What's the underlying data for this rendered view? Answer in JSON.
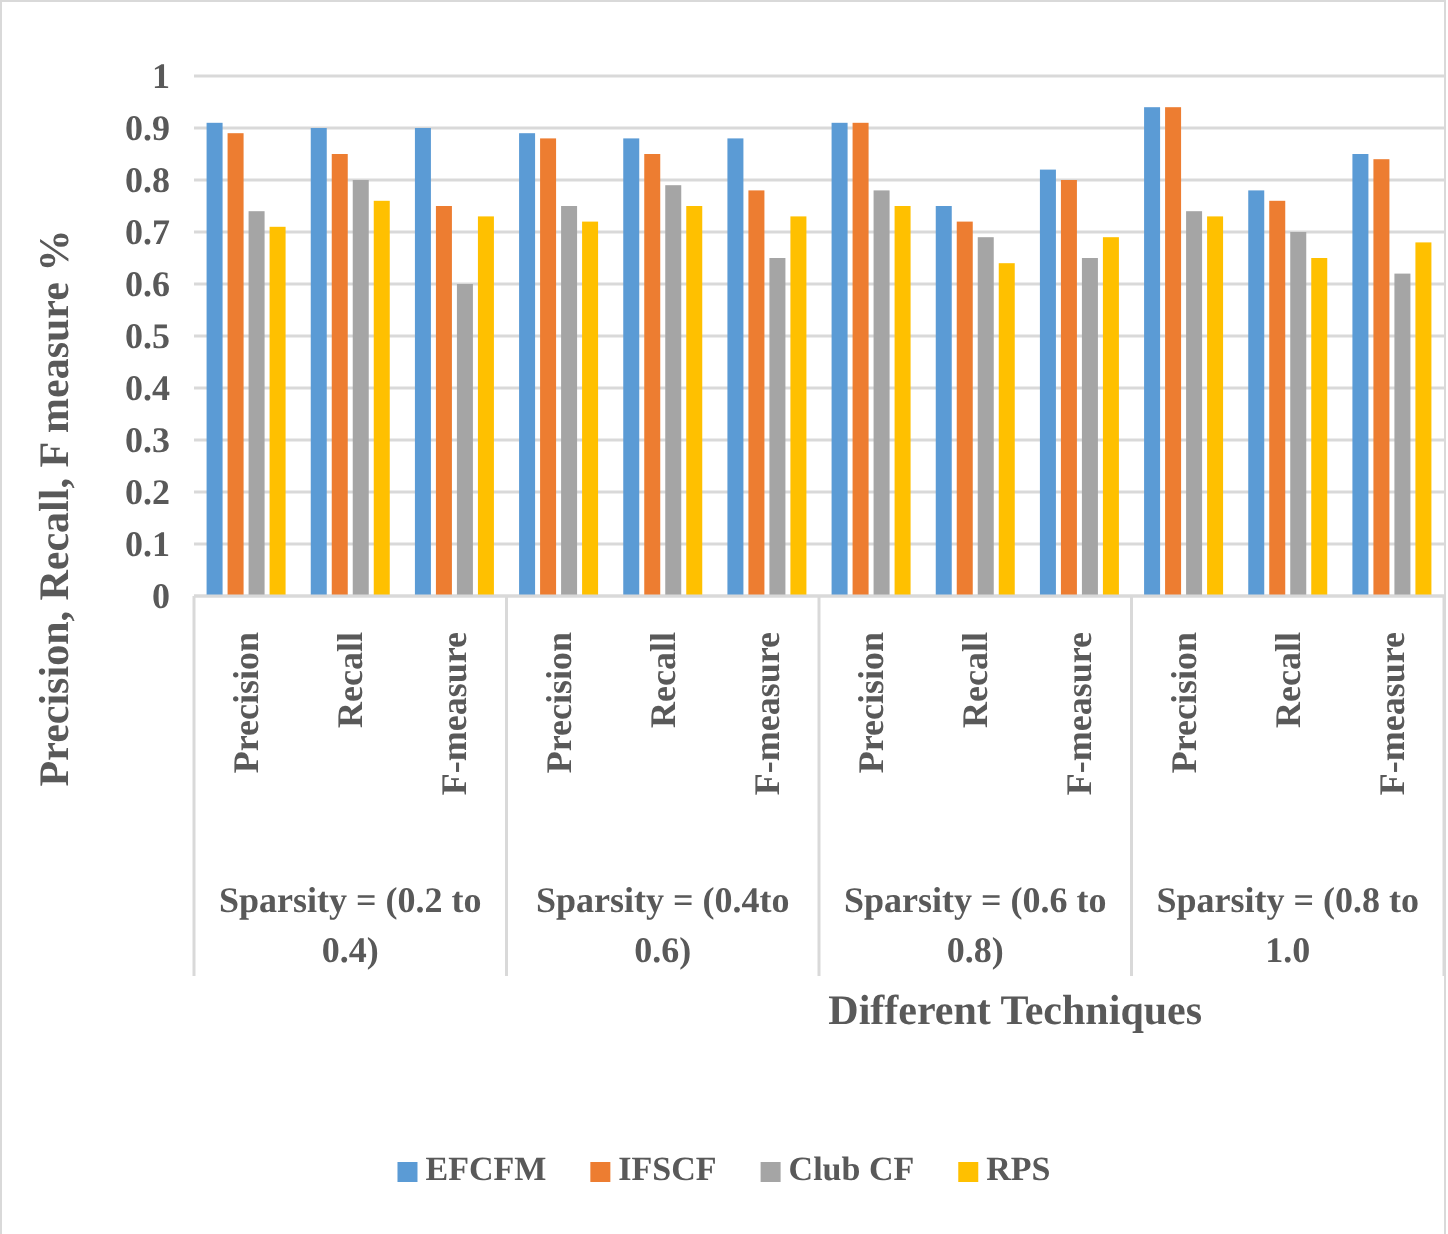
{
  "chart_data": {
    "type": "bar",
    "xlabel": "Different Techniques",
    "ylabel": "Precision, Recall, F measure %",
    "categories": [
      "Precision",
      "Recall",
      "F-measure",
      "Precision",
      "Recall",
      "F-measure",
      "Precision",
      "Recall",
      "F-measure",
      "Precision",
      "Recall",
      "F-measure"
    ],
    "annotations": [
      "Sparsity = (0.2 to 0.4)",
      "Sparsity = (0.4to 0.6)",
      "Sparsity = (0.6 to 0.8)",
      "Sparsity = (0.8 to 1.0"
    ],
    "series": [
      {
        "name": "EFCFM",
        "color": "#5b9bd5",
        "values": [
          0.91,
          0.9,
          0.9,
          0.89,
          0.88,
          0.88,
          0.91,
          0.75,
          0.82,
          0.94,
          0.78,
          0.85
        ]
      },
      {
        "name": "IFSCF",
        "color": "#ed7d31",
        "values": [
          0.89,
          0.85,
          0.75,
          0.88,
          0.85,
          0.78,
          0.91,
          0.72,
          0.8,
          0.94,
          0.76,
          0.84
        ]
      },
      {
        "name": "Club CF",
        "color": "#a5a5a5",
        "values": [
          0.74,
          0.8,
          0.6,
          0.75,
          0.79,
          0.65,
          0.78,
          0.69,
          0.65,
          0.74,
          0.7,
          0.62
        ]
      },
      {
        "name": "RPS",
        "color": "#ffc000",
        "values": [
          0.71,
          0.76,
          0.73,
          0.72,
          0.75,
          0.73,
          0.75,
          0.64,
          0.69,
          0.73,
          0.65,
          0.68
        ]
      }
    ],
    "ylim": [
      0,
      1
    ],
    "yticks": [
      0,
      0.1,
      0.2,
      0.3,
      0.4,
      0.5,
      0.6,
      0.7,
      0.8,
      0.9,
      1
    ],
    "grid": "y",
    "legend": "bottom"
  }
}
